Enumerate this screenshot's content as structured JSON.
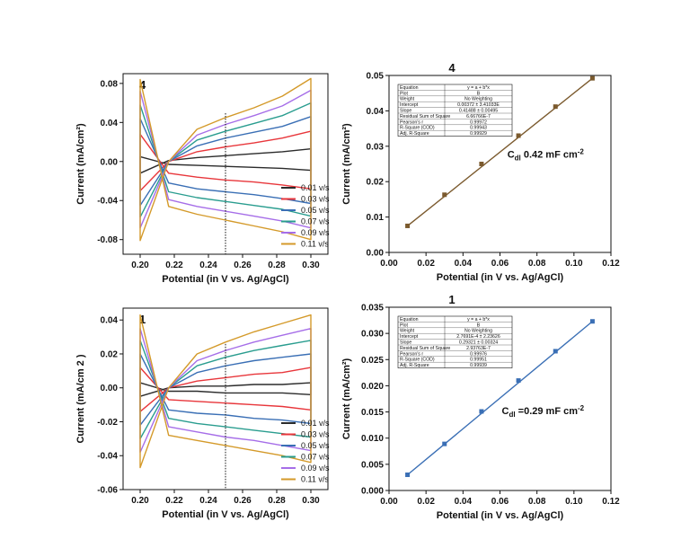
{
  "chart_data": [
    {
      "type": "line",
      "panel_label": "4",
      "xlabel": "Potential (in V vs. Ag/AgCl)",
      "ylabel": "Current (mA/cm²)",
      "xlim": [
        0.19,
        0.31
      ],
      "ylim": [
        -0.095,
        0.09
      ],
      "xticks": [
        "0.20",
        "0.22",
        "0.24",
        "0.26",
        "0.28",
        "0.30"
      ],
      "yticks": [
        "-0.08",
        "-0.04",
        "0.00",
        "0.04",
        "0.08"
      ],
      "xtick_values": [
        0.2,
        0.22,
        0.24,
        0.26,
        0.28,
        0.3
      ],
      "ytick_values": [
        -0.08,
        -0.04,
        0.0,
        0.04,
        0.08
      ],
      "marker_line_x": 0.25,
      "legend_position": "bottom-right",
      "series": [
        {
          "name": "0.01 v/s",
          "color": "#2b2b2b",
          "v_start": 0.2,
          "v_end": 0.3,
          "anodic": [
            -0.012,
            0.001,
            0.004,
            0.006,
            0.008,
            0.01,
            0.013
          ],
          "cathodic": [
            0.005,
            -0.003,
            -0.004,
            -0.005,
            -0.006,
            -0.007,
            -0.009
          ]
        },
        {
          "name": "0.03 v/s",
          "color": "#e8363b",
          "v_start": 0.2,
          "v_end": 0.3,
          "anodic": [
            -0.03,
            0.0,
            0.01,
            0.015,
            0.019,
            0.024,
            0.031
          ],
          "cathodic": [
            0.028,
            -0.012,
            -0.016,
            -0.019,
            -0.021,
            -0.024,
            -0.028
          ]
        },
        {
          "name": "0.05 v/s",
          "color": "#3a6fb5",
          "v_start": 0.2,
          "v_end": 0.3,
          "anodic": [
            -0.045,
            0.0,
            0.016,
            0.024,
            0.03,
            0.036,
            0.046
          ],
          "cathodic": [
            0.044,
            -0.022,
            -0.028,
            -0.031,
            -0.034,
            -0.038,
            -0.043
          ]
        },
        {
          "name": "0.07 v/s",
          "color": "#2a9d8f",
          "v_start": 0.2,
          "v_end": 0.3,
          "anodic": [
            -0.057,
            0.0,
            0.022,
            0.031,
            0.039,
            0.047,
            0.06
          ],
          "cathodic": [
            0.058,
            -0.031,
            -0.037,
            -0.041,
            -0.045,
            -0.049,
            -0.056
          ]
        },
        {
          "name": "0.09 v/s",
          "color": "#a66ee8",
          "v_start": 0.2,
          "v_end": 0.3,
          "anodic": [
            -0.068,
            0.0,
            0.027,
            0.038,
            0.047,
            0.057,
            0.073
          ],
          "cathodic": [
            0.072,
            -0.039,
            -0.046,
            -0.051,
            -0.056,
            -0.061,
            -0.068
          ]
        },
        {
          "name": "0.11 v/s",
          "color": "#d49a2a",
          "v_start": 0.2,
          "v_end": 0.3,
          "anodic": [
            -0.081,
            0.0,
            0.033,
            0.045,
            0.055,
            0.067,
            0.085
          ],
          "cathodic": [
            0.084,
            -0.046,
            -0.054,
            -0.06,
            -0.066,
            -0.072,
            -0.08
          ]
        }
      ]
    },
    {
      "type": "scatter",
      "panel_label": "4",
      "xlabel": "Potential (in V vs. Ag/AgCl)",
      "ylabel": "Current (mA/cm²)",
      "xlim": [
        0.0,
        0.12
      ],
      "ylim": [
        0.0,
        0.05
      ],
      "xticks": [
        "0.00",
        "0.02",
        "0.04",
        "0.06",
        "0.08",
        "0.10",
        "0.12"
      ],
      "yticks": [
        "0.00",
        "0.01",
        "0.02",
        "0.03",
        "0.04",
        "0.05"
      ],
      "xtick_values": [
        0.0,
        0.02,
        0.04,
        0.06,
        0.08,
        0.1,
        0.12
      ],
      "ytick_values": [
        0.0,
        0.01,
        0.02,
        0.03,
        0.04,
        0.05
      ],
      "color": "#7b5a2e",
      "x": [
        0.01,
        0.03,
        0.05,
        0.07,
        0.09,
        0.11
      ],
      "y": [
        0.0075,
        0.0163,
        0.025,
        0.033,
        0.0412,
        0.0492
      ],
      "annotation": "0.42 mF cm",
      "annotation_prefix": "C",
      "annotation_sub": "dl",
      "annotation_exp": "-2",
      "fit_table": [
        [
          "Equation",
          "y = a + b*x"
        ],
        [
          "Plot",
          "B"
        ],
        [
          "Weight",
          "No Weighting"
        ],
        [
          "Intercept",
          "0.00372 ± 3.41033E"
        ],
        [
          "Slope",
          "0.41488 ± 0.00495"
        ],
        [
          "Residual Sum of Square",
          "6.66766E-7"
        ],
        [
          "Pearson's r",
          "0.99972"
        ],
        [
          "R-Square (COD)",
          "0.99943"
        ],
        [
          "Adj. R-Square",
          "0.99929"
        ]
      ]
    },
    {
      "type": "line",
      "panel_label": "1",
      "xlabel": "Potential (in V vs. Ag/AgCl)",
      "ylabel": "Current  (mA/cm 2 )",
      "xlim": [
        0.19,
        0.31
      ],
      "ylim": [
        -0.06,
        0.047
      ],
      "xticks": [
        "0.20",
        "0.22",
        "0.24",
        "0.26",
        "0.28",
        "0.30"
      ],
      "yticks": [
        "-0.06",
        "-0.04",
        "-0.02",
        "0.00",
        "0.02",
        "0.04"
      ],
      "xtick_values": [
        0.2,
        0.22,
        0.24,
        0.26,
        0.28,
        0.3
      ],
      "ytick_values": [
        -0.06,
        -0.04,
        -0.02,
        0.0,
        0.02,
        0.04
      ],
      "marker_line_x": 0.25,
      "legend_position": "bottom-right",
      "series": [
        {
          "name": "0.01 v/s",
          "color": "#2b2b2b",
          "v_start": 0.2,
          "v_end": 0.3,
          "anodic": [
            -0.005,
            0.0,
            0.001,
            0.001,
            0.002,
            0.002,
            0.003
          ],
          "cathodic": [
            0.003,
            -0.002,
            -0.002,
            -0.003,
            -0.003,
            -0.003,
            -0.004
          ]
        },
        {
          "name": "0.03 v/s",
          "color": "#e8363b",
          "v_start": 0.2,
          "v_end": 0.3,
          "anodic": [
            -0.014,
            0.0,
            0.004,
            0.006,
            0.008,
            0.009,
            0.012
          ],
          "cathodic": [
            0.012,
            -0.007,
            -0.008,
            -0.009,
            -0.01,
            -0.011,
            -0.013
          ]
        },
        {
          "name": "0.05 v/s",
          "color": "#3a6fb5",
          "v_start": 0.2,
          "v_end": 0.3,
          "anodic": [
            -0.022,
            0.0,
            0.009,
            0.013,
            0.016,
            0.018,
            0.02
          ],
          "cathodic": [
            0.02,
            -0.013,
            -0.015,
            -0.016,
            -0.018,
            -0.019,
            -0.021
          ]
        },
        {
          "name": "0.07 v/s",
          "color": "#2a9d8f",
          "v_start": 0.2,
          "v_end": 0.3,
          "anodic": [
            -0.03,
            0.0,
            0.013,
            0.018,
            0.022,
            0.025,
            0.028
          ],
          "cathodic": [
            0.028,
            -0.018,
            -0.021,
            -0.023,
            -0.025,
            -0.027,
            -0.029
          ]
        },
        {
          "name": "0.09 v/s",
          "color": "#a66ee8",
          "v_start": 0.2,
          "v_end": 0.3,
          "anodic": [
            -0.038,
            0.0,
            0.016,
            0.022,
            0.027,
            0.031,
            0.035
          ],
          "cathodic": [
            0.035,
            -0.023,
            -0.026,
            -0.029,
            -0.031,
            -0.034,
            -0.037
          ]
        },
        {
          "name": "0.11 v/s",
          "color": "#d49a2a",
          "v_start": 0.2,
          "v_end": 0.3,
          "anodic": [
            -0.047,
            0.0,
            0.02,
            0.027,
            0.033,
            0.038,
            0.043
          ],
          "cathodic": [
            0.043,
            -0.028,
            -0.031,
            -0.034,
            -0.037,
            -0.04,
            -0.044
          ]
        }
      ]
    },
    {
      "type": "scatter",
      "panel_label": "1",
      "xlabel": "Potential (in V vs. Ag/AgCl)",
      "ylabel": "Current (mA/cm²)",
      "xlim": [
        0.0,
        0.12
      ],
      "ylim": [
        0.0,
        0.035
      ],
      "xticks": [
        "0.00",
        "0.02",
        "0.04",
        "0.06",
        "0.08",
        "0.10",
        "0.12"
      ],
      "yticks": [
        "0.000",
        "0.005",
        "0.010",
        "0.015",
        "0.020",
        "0.025",
        "0.030",
        "0.035"
      ],
      "xtick_values": [
        0.0,
        0.02,
        0.04,
        0.06,
        0.08,
        0.1,
        0.12
      ],
      "ytick_values": [
        0.0,
        0.005,
        0.01,
        0.015,
        0.02,
        0.025,
        0.03,
        0.035
      ],
      "color": "#3a6fb5",
      "x": [
        0.01,
        0.03,
        0.05,
        0.07,
        0.09,
        0.11
      ],
      "y": [
        0.003,
        0.0089,
        0.0151,
        0.021,
        0.0266,
        0.0323
      ],
      "annotation": "=0.29 mF cm",
      "annotation_prefix": "C",
      "annotation_sub": "dl",
      "annotation_exp": "-2",
      "fit_table": [
        [
          "Equation",
          "y = a + b*x"
        ],
        [
          "Plot",
          "B"
        ],
        [
          "Weight",
          "No Weighting"
        ],
        [
          "Intercept",
          "2.7691E-4 ± 2.23626"
        ],
        [
          "Slope",
          "0.29321 ± 0.00324"
        ],
        [
          "Residual Sum of Square",
          "2.93763E-7"
        ],
        [
          "Pearson's r",
          "0.99976"
        ],
        [
          "R-Square (COD)",
          "0.99951"
        ],
        [
          "Adj. R-Square",
          "0.99939"
        ]
      ]
    }
  ]
}
